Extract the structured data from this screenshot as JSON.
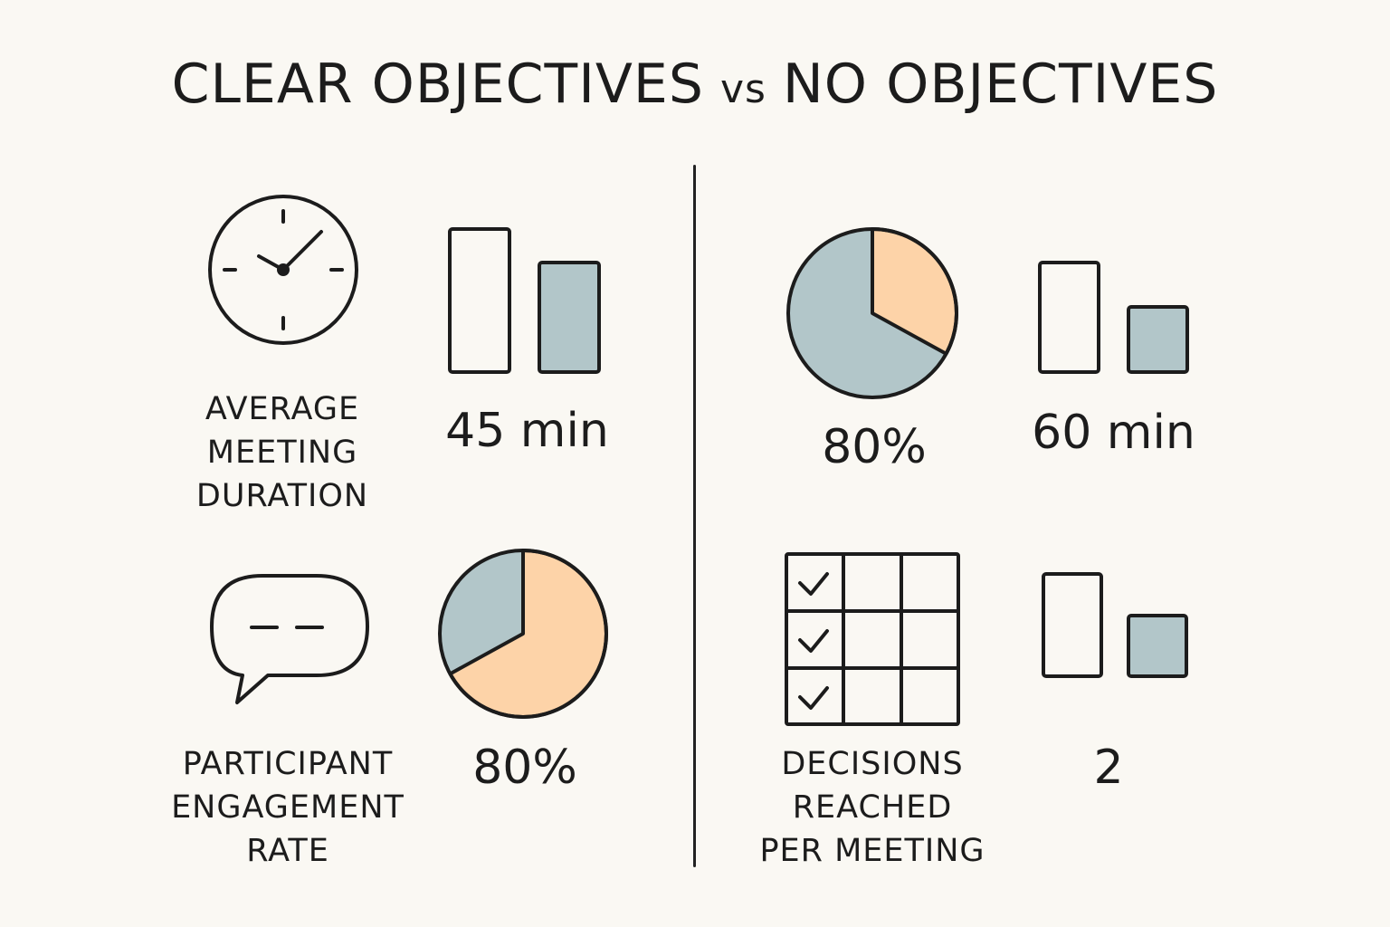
{
  "title": {
    "left": "CLEAR OBJECTIVES",
    "vs": "vs",
    "right": "NO OBJECTIVES"
  },
  "left_panel": {
    "duration": {
      "label_lines": [
        "AVERAGE",
        "MEETING",
        "DURATION"
      ],
      "value": "45 min",
      "icon": "clock-icon"
    },
    "engagement": {
      "label_lines": [
        "PARTICIPANT",
        "ENGAGEMENT",
        "RATE"
      ],
      "value": "80%",
      "icon": "speech-bubble-icon",
      "pie_fraction": 0.67
    }
  },
  "right_panel": {
    "engagement": {
      "value": "80%",
      "pie_fraction": 0.33
    },
    "duration": {
      "value": "60 min"
    },
    "decisions": {
      "label_lines": [
        "DECISIONS",
        "REACHED",
        "PER MEETING"
      ],
      "value": "2",
      "icon": "checklist-grid-icon",
      "checked_rows": 3
    }
  },
  "colors": {
    "background": "#faf8f3",
    "ink": "#1c1c1c",
    "blue_gray": "#b2c6c9",
    "peach": "#fdd3a8"
  }
}
